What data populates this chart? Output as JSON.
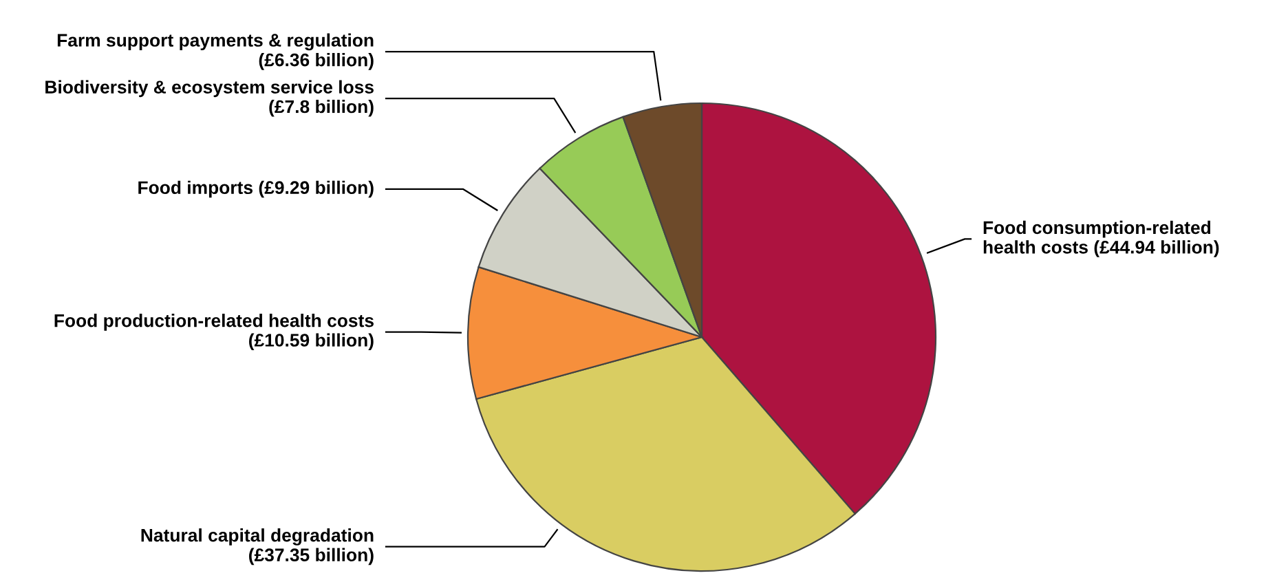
{
  "chart_data": {
    "type": "pie",
    "categories": [
      "Food consumption-related\nhealth costs",
      "Natural capital degradation",
      "Food production-related health costs",
      "Food imports",
      "Biodiversity & ecosystem service loss",
      "Farm support payments & regulation"
    ],
    "values": [
      44.94,
      37.35,
      10.59,
      9.29,
      7.8,
      6.36
    ],
    "value_labels": [
      "(£44.94 billion)",
      "(£37.35 billion)",
      "(£10.59 billion)",
      "(£9.29 billion)",
      "(£7.8 billion)",
      "(£6.36 billion)"
    ],
    "colors": [
      "#ad1340",
      "#d9cd62",
      "#f68f3c",
      "#d0d1c6",
      "#97cb57",
      "#6d4a2a"
    ],
    "legend": false
  }
}
